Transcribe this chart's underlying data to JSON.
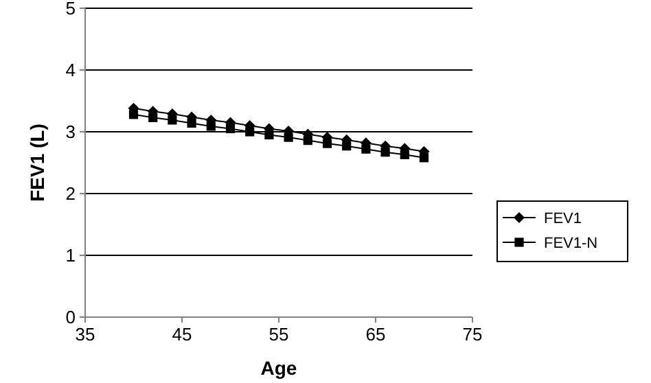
{
  "chart_data": {
    "type": "line",
    "xlabel": "Age",
    "ylabel": "FEV1 (L)",
    "x": [
      40,
      42,
      44,
      46,
      48,
      50,
      52,
      54,
      56,
      58,
      60,
      62,
      64,
      66,
      68,
      70
    ],
    "series": [
      {
        "name": "FEV1",
        "color": "#000000",
        "marker": "diamond",
        "values": [
          3.38,
          3.33,
          3.29,
          3.24,
          3.19,
          3.15,
          3.1,
          3.05,
          3.01,
          2.96,
          2.91,
          2.87,
          2.82,
          2.77,
          2.73,
          2.68
        ]
      },
      {
        "name": "FEV1-N",
        "color": "#000000",
        "marker": "square",
        "values": [
          3.28,
          3.23,
          3.19,
          3.14,
          3.09,
          3.05,
          3.0,
          2.95,
          2.91,
          2.86,
          2.81,
          2.77,
          2.72,
          2.67,
          2.63,
          2.58
        ]
      }
    ],
    "xlim": [
      35,
      75
    ],
    "xticks": [
      35,
      45,
      55,
      65,
      75
    ],
    "ylim": [
      0,
      5
    ],
    "yticks": [
      0,
      1,
      2,
      3,
      4,
      5
    ],
    "grid": "y",
    "legend": "right",
    "line_style": "solid"
  }
}
